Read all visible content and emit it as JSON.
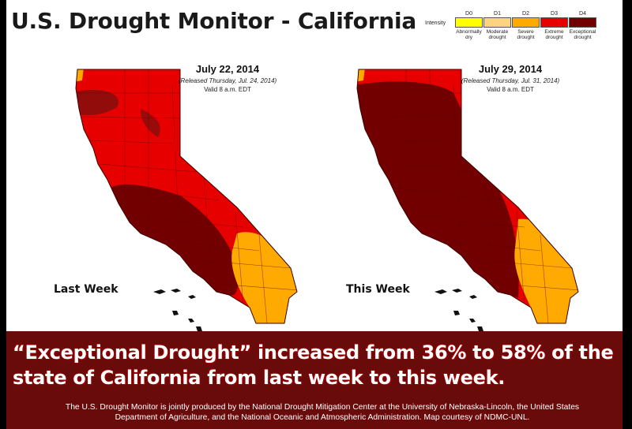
{
  "title": "U.S. Drought Monitor - California",
  "legend": {
    "intensity_label": "Intensity",
    "categories": [
      {
        "code": "D0",
        "label": "Abnormally dry",
        "color": "#ffff00"
      },
      {
        "code": "D1",
        "label": "Moderate drought",
        "color": "#fcd37f"
      },
      {
        "code": "D2",
        "label": "Severe drought",
        "color": "#ffaa00"
      },
      {
        "code": "D3",
        "label": "Extreme drought",
        "color": "#e60000"
      },
      {
        "code": "D4",
        "label": "Exceptional drought",
        "color": "#730000"
      }
    ]
  },
  "maps": [
    {
      "date": "July 22, 2014",
      "released": "(Released Thursday, Jul. 24, 2014)",
      "valid": "Valid 8 a.m. EDT",
      "label": "Last Week",
      "exceptional_pct": 36
    },
    {
      "date": "July 29, 2014",
      "released": "(Released Thursday, Jul. 31, 2014)",
      "valid": "Valid 8 a.m. EDT",
      "label": "This Week",
      "exceptional_pct": 58
    }
  ],
  "headline": {
    "line1": "“Exceptional Drought” increased from 36% to 58% of the",
    "line2": "state of California from last week to this week."
  },
  "credit": {
    "line1": "The U.S. Drought Monitor is jointly produced by the National Drought Mitigation Center at the University of Nebraska-Lincoln, the United States",
    "line2": "Department of Agriculture, and the National Oceanic and Atmospheric Administration. Map courtesy of NDMC-UNL."
  }
}
